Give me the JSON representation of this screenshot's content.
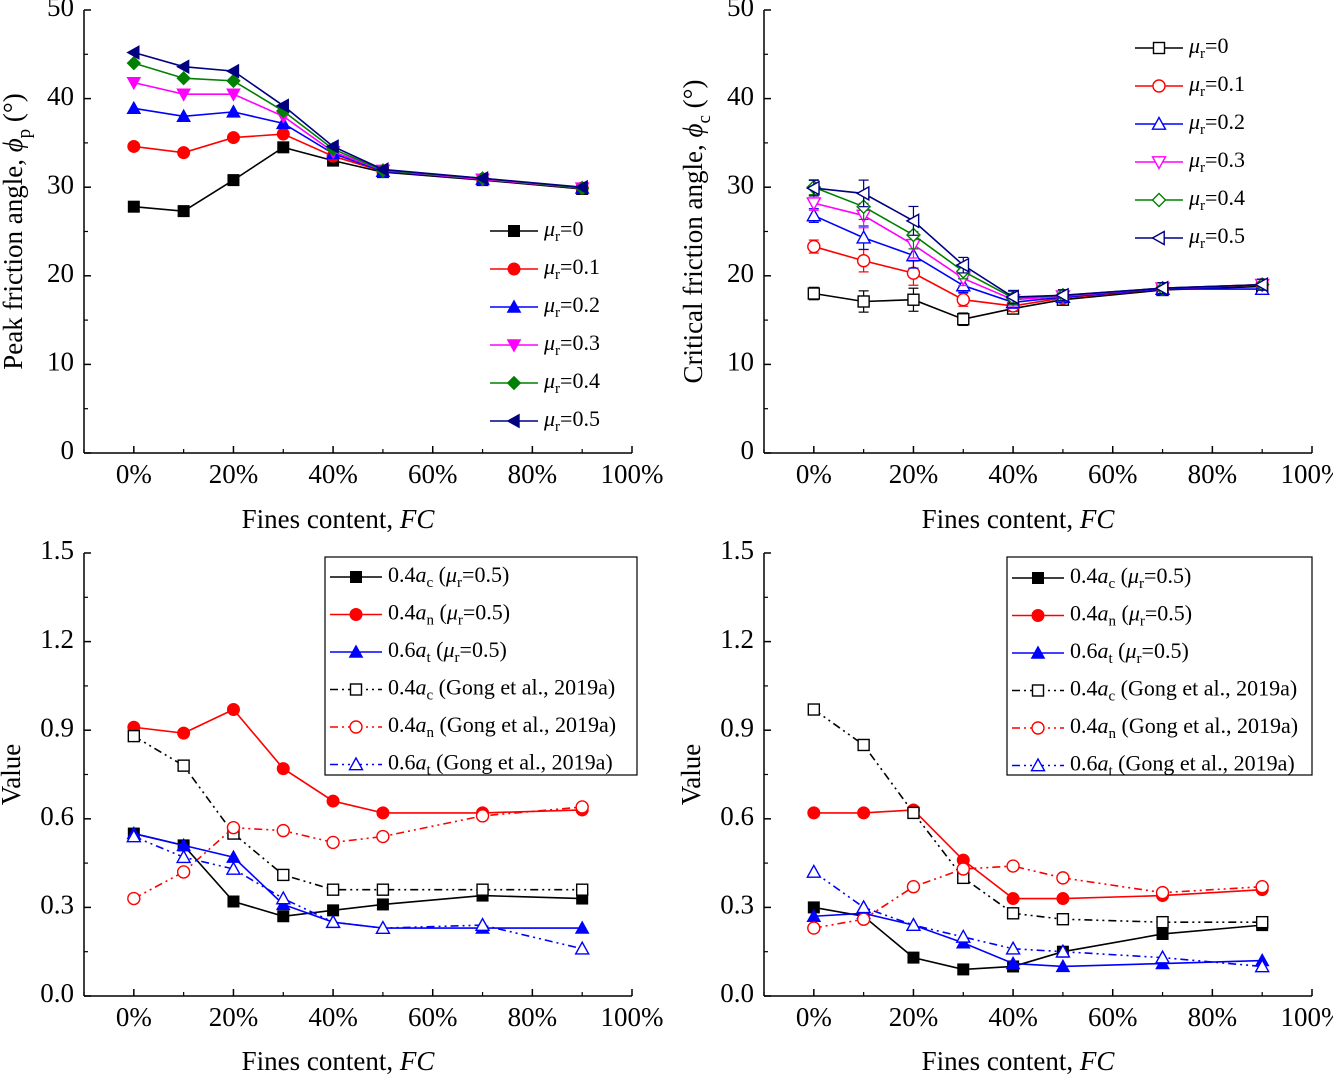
{
  "chart_data": [
    {
      "type": "line",
      "xlabel": "Fines content, FC",
      "ylabel": "Peak friction angle, ϕp (°)",
      "x": [
        "0%",
        "10%",
        "20%",
        "30%",
        "40%",
        "50%",
        "70%",
        "90%"
      ],
      "xlim": [
        "-10%",
        "100%"
      ],
      "ylim": [
        0,
        50
      ],
      "x_ticks": [
        "0%",
        "20%",
        "40%",
        "60%",
        "80%",
        "100%"
      ],
      "y_ticks": [
        "0",
        "10",
        "20",
        "30",
        "40",
        "50"
      ],
      "grid": false,
      "error_bars": false,
      "legend_position": "right-middle",
      "series": [
        {
          "name": "μr=0",
          "color": "#000000",
          "marker": "square-filled",
          "line": "solid",
          "values": [
            27.8,
            27.3,
            30.8,
            34.5,
            33.0,
            31.7,
            30.8,
            29.8
          ]
        },
        {
          "name": "μr=0.1",
          "color": "#ff0000",
          "marker": "circle-filled",
          "line": "solid",
          "values": [
            34.6,
            33.9,
            35.6,
            36.0,
            33.5,
            31.8,
            30.9,
            29.9
          ]
        },
        {
          "name": "μr=0.2",
          "color": "#0000ff",
          "marker": "triangle-up-filled",
          "line": "solid",
          "values": [
            38.9,
            38.0,
            38.5,
            37.2,
            33.8,
            31.8,
            30.9,
            29.9
          ]
        },
        {
          "name": "μr=0.3",
          "color": "#ff00ff",
          "marker": "triangle-down-filled",
          "line": "solid",
          "values": [
            41.8,
            40.5,
            40.5,
            38.0,
            34.0,
            31.9,
            30.9,
            29.9
          ]
        },
        {
          "name": "μr=0.4",
          "color": "#008000",
          "marker": "diamond-filled",
          "line": "solid",
          "values": [
            44.0,
            42.3,
            42.0,
            38.6,
            34.3,
            31.9,
            31.0,
            29.9
          ]
        },
        {
          "name": "μr=0.5",
          "color": "#000080",
          "marker": "triangle-left-filled",
          "line": "solid",
          "values": [
            45.2,
            43.6,
            43.1,
            39.2,
            34.6,
            32.0,
            31.0,
            30.0
          ]
        }
      ]
    },
    {
      "type": "line",
      "xlabel": "Fines content, FC",
      "ylabel": "Critical friction angle, ϕc (°)",
      "x": [
        "0%",
        "10%",
        "20%",
        "30%",
        "40%",
        "50%",
        "70%",
        "90%"
      ],
      "xlim": [
        "-10%",
        "100%"
      ],
      "ylim": [
        0,
        50
      ],
      "x_ticks": [
        "0%",
        "20%",
        "40%",
        "60%",
        "80%",
        "100%"
      ],
      "y_ticks": [
        "0",
        "10",
        "20",
        "30",
        "40",
        "50"
      ],
      "grid": false,
      "error_bars": true,
      "legend_position": "top-right",
      "series": [
        {
          "name": "μr=0",
          "color": "#000000",
          "marker": "square-open",
          "line": "solid",
          "values": [
            18.0,
            17.1,
            17.3,
            15.1,
            16.3,
            17.3,
            18.4,
            18.8
          ]
        },
        {
          "name": "μr=0.1",
          "color": "#ff0000",
          "marker": "circle-open",
          "line": "solid",
          "values": [
            23.3,
            21.7,
            20.3,
            17.3,
            16.6,
            17.5,
            18.5,
            19.0
          ]
        },
        {
          "name": "μr=0.2",
          "color": "#0000ff",
          "marker": "triangle-up-open",
          "line": "solid",
          "values": [
            26.8,
            24.3,
            22.3,
            18.9,
            17.0,
            17.6,
            18.5,
            18.5
          ]
        },
        {
          "name": "μr=0.3",
          "color": "#ff00ff",
          "marker": "triangle-down-open",
          "line": "solid",
          "values": [
            28.2,
            26.8,
            23.5,
            19.7,
            17.3,
            17.7,
            18.6,
            19.0
          ]
        },
        {
          "name": "μr=0.4",
          "color": "#008000",
          "marker": "diamond-open",
          "line": "solid",
          "values": [
            30.0,
            27.8,
            24.6,
            20.5,
            17.5,
            17.8,
            18.6,
            19.0
          ]
        },
        {
          "name": "μr=0.5",
          "color": "#000080",
          "marker": "triangle-left-open",
          "line": "solid",
          "values": [
            29.9,
            29.3,
            26.2,
            21.2,
            17.6,
            17.8,
            18.6,
            19.0
          ]
        }
      ]
    },
    {
      "type": "line",
      "xlabel": "Fines content, FC",
      "ylabel": "Value",
      "x": [
        "0%",
        "10%",
        "20%",
        "30%",
        "40%",
        "50%",
        "70%",
        "90%"
      ],
      "xlim": [
        "-10%",
        "100%"
      ],
      "ylim": [
        0.0,
        1.5
      ],
      "x_ticks": [
        "0%",
        "20%",
        "40%",
        "60%",
        "80%",
        "100%"
      ],
      "y_ticks": [
        "0.0",
        "0.3",
        "0.6",
        "0.9",
        "1.2",
        "1.5"
      ],
      "grid": false,
      "error_bars": false,
      "legend_position": "top-right",
      "series": [
        {
          "name": "0.4ac (μr=0.5)",
          "color": "#000000",
          "marker": "square-filled",
          "line": "solid",
          "values": [
            0.55,
            0.51,
            0.32,
            0.27,
            0.29,
            0.31,
            0.34,
            0.33
          ]
        },
        {
          "name": "0.4an (μr=0.5)",
          "color": "#ff0000",
          "marker": "circle-filled",
          "line": "solid",
          "values": [
            0.91,
            0.89,
            0.97,
            0.77,
            0.66,
            0.62,
            0.62,
            0.63
          ]
        },
        {
          "name": "0.6at (μr=0.5)",
          "color": "#0000ff",
          "marker": "triangle-up-filled",
          "line": "solid",
          "values": [
            0.55,
            0.51,
            0.47,
            0.31,
            0.25,
            0.23,
            0.23,
            0.23
          ]
        },
        {
          "name": "0.4ac (Gong et al., 2019a)",
          "color": "#000000",
          "marker": "square-open",
          "line": "dashdotdot",
          "values": [
            0.88,
            0.78,
            0.55,
            0.41,
            0.36,
            0.36,
            0.36,
            0.36
          ]
        },
        {
          "name": "0.4an (Gong et al., 2019a)",
          "color": "#ff0000",
          "marker": "circle-open",
          "line": "dashdotdot",
          "values": [
            0.33,
            0.42,
            0.57,
            0.56,
            0.52,
            0.54,
            0.61,
            0.64
          ]
        },
        {
          "name": "0.6at (Gong et al., 2019a)",
          "color": "#0000ff",
          "marker": "triangle-up-open",
          "line": "dashdotdot",
          "values": [
            0.54,
            0.47,
            0.43,
            0.33,
            0.25,
            0.23,
            0.24,
            0.16
          ]
        }
      ]
    },
    {
      "type": "line",
      "xlabel": "Fines content, FC",
      "ylabel": "Value",
      "x": [
        "0%",
        "10%",
        "20%",
        "30%",
        "40%",
        "50%",
        "70%",
        "90%"
      ],
      "xlim": [
        "-10%",
        "100%"
      ],
      "ylim": [
        0.0,
        1.5
      ],
      "x_ticks": [
        "0%",
        "20%",
        "40%",
        "60%",
        "80%",
        "100%"
      ],
      "y_ticks": [
        "0.0",
        "0.3",
        "0.6",
        "0.9",
        "1.2",
        "1.5"
      ],
      "grid": false,
      "error_bars": false,
      "legend_position": "top-right",
      "series": [
        {
          "name": "0.4ac (μr=0.5)",
          "color": "#000000",
          "marker": "square-filled",
          "line": "solid",
          "values": [
            0.3,
            0.27,
            0.13,
            0.09,
            0.1,
            0.15,
            0.21,
            0.24
          ]
        },
        {
          "name": "0.4an (μr=0.5)",
          "color": "#ff0000",
          "marker": "circle-filled",
          "line": "solid",
          "values": [
            0.62,
            0.62,
            0.63,
            0.46,
            0.33,
            0.33,
            0.34,
            0.36
          ]
        },
        {
          "name": "0.6at (μr=0.5)",
          "color": "#0000ff",
          "marker": "triangle-up-filled",
          "line": "solid",
          "values": [
            0.27,
            0.28,
            0.24,
            0.18,
            0.11,
            0.1,
            0.11,
            0.12
          ]
        },
        {
          "name": "0.4ac (Gong et al., 2019a)",
          "color": "#000000",
          "marker": "square-open",
          "line": "dashdotdot",
          "values": [
            0.97,
            0.85,
            0.62,
            0.4,
            0.28,
            0.26,
            0.25,
            0.25
          ]
        },
        {
          "name": "0.4an (Gong et al., 2019a)",
          "color": "#ff0000",
          "marker": "circle-open",
          "line": "dashdotdot",
          "values": [
            0.23,
            0.26,
            0.37,
            0.43,
            0.44,
            0.4,
            0.35,
            0.37
          ]
        },
        {
          "name": "0.6at (Gong et al., 2019a)",
          "color": "#0000ff",
          "marker": "triangle-up-open",
          "line": "dashdotdot",
          "values": [
            0.42,
            0.3,
            0.24,
            0.2,
            0.16,
            0.15,
            0.13,
            0.1
          ]
        }
      ]
    }
  ]
}
